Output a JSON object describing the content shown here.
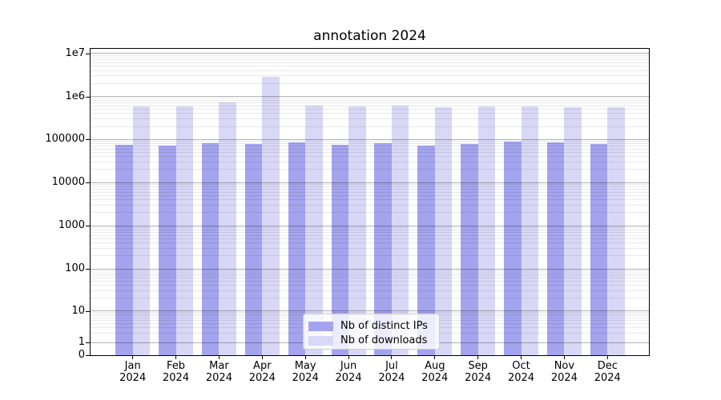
{
  "title": "annotation 2024",
  "chart_data": {
    "type": "bar",
    "title": "annotation 2024",
    "categories": [
      "Jan",
      "Feb",
      "Mar",
      "Apr",
      "May",
      "Jun",
      "Jul",
      "Aug",
      "Sep",
      "Oct",
      "Nov",
      "Dec"
    ],
    "year_label": "2024",
    "series": [
      {
        "name": "Nb of distinct IPs",
        "color": "#a4a4ee",
        "values": [
          75000,
          72000,
          81000,
          78000,
          85000,
          74000,
          81000,
          73000,
          77000,
          88000,
          87000,
          79000
        ]
      },
      {
        "name": "Nb of downloads",
        "color": "#d8d8f6",
        "values": [
          590000,
          580000,
          730000,
          2840000,
          620000,
          590000,
          600000,
          550000,
          590000,
          580000,
          560000,
          570000
        ]
      }
    ],
    "yscale": "symlog",
    "ylim": [
      0,
      12500000
    ],
    "yticks": [
      {
        "value": 0,
        "label": "0"
      },
      {
        "value": 1,
        "label": "1"
      },
      {
        "value": 10,
        "label": "10"
      },
      {
        "value": 100,
        "label": "100"
      },
      {
        "value": 1000,
        "label": "1000"
      },
      {
        "value": 10000,
        "label": "10000"
      },
      {
        "value": 100000,
        "label": "100000"
      },
      {
        "value": 1000000,
        "label": "1e6"
      },
      {
        "value": 10000000,
        "label": "1e7"
      }
    ],
    "grid": "major+minor horizontal",
    "legend": {
      "position": "lower center",
      "entries": [
        "Nb of distinct IPs",
        "Nb of downloads"
      ]
    }
  },
  "colors": {
    "background": "#ffffff",
    "spine": "#000000",
    "major_grid": "#b3b3b3",
    "minor_grid": "#e9e9e9",
    "bar_distinct_ips": "#a4a4ee",
    "bar_downloads": "#d8d8f6"
  }
}
